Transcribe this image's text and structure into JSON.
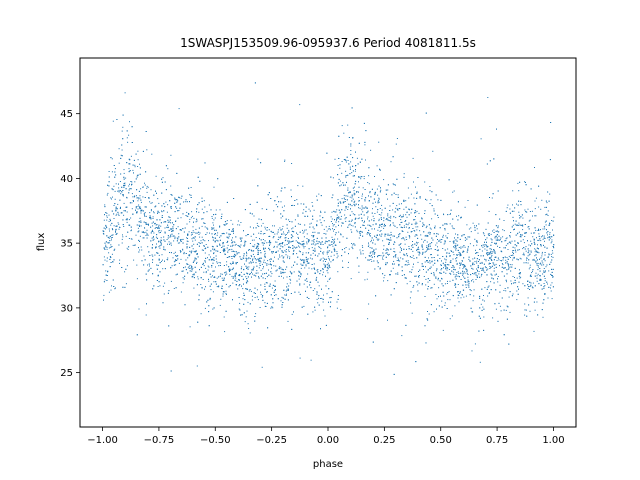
{
  "chart_data": {
    "type": "scatter",
    "title": "1SWASPJ153509.96-095937.6 Period 4081811.5s",
    "xlabel": "phase",
    "ylabel": "flux",
    "xlim": [
      -1.1,
      1.1
    ],
    "ylim": [
      20.8,
      49.3
    ],
    "xticks": [
      -1.0,
      -0.75,
      -0.5,
      -0.25,
      0.0,
      0.25,
      0.5,
      0.75,
      1.0
    ],
    "xtick_labels": [
      "−1.00",
      "−0.75",
      "−0.50",
      "−0.25",
      "0.00",
      "0.25",
      "0.50",
      "0.75",
      "1.00"
    ],
    "yticks": [
      25,
      30,
      35,
      40,
      45
    ],
    "ytick_labels": [
      "25",
      "30",
      "35",
      "40",
      "45"
    ],
    "grid": false,
    "marker_color": "#1f77b4",
    "series": [
      {
        "phase": [
          -1.0,
          -0.95,
          -0.9,
          -0.85,
          -0.8,
          -0.75,
          -0.7,
          -0.65,
          -0.6,
          -0.55,
          -0.5,
          -0.45,
          -0.4,
          -0.35,
          -0.3,
          -0.25,
          -0.2,
          -0.15,
          -0.1,
          -0.05,
          0.0,
          0.05,
          0.1,
          0.15,
          0.2,
          0.25,
          0.3,
          0.35,
          0.4,
          0.45,
          0.5,
          0.55,
          0.6,
          0.65,
          0.7,
          0.75,
          0.8,
          0.85,
          0.9,
          0.95,
          1.0
        ],
        "flux_mean": [
          34.5,
          37.0,
          38.5,
          37.5,
          36.0,
          35.5,
          36.0,
          35.5,
          35.0,
          34.5,
          34.0,
          34.0,
          33.5,
          33.0,
          33.5,
          34.0,
          34.5,
          34.5,
          34.0,
          34.0,
          34.5,
          37.0,
          38.5,
          37.5,
          36.0,
          35.5,
          36.0,
          35.5,
          35.0,
          34.5,
          34.0,
          34.0,
          33.5,
          33.0,
          33.5,
          34.0,
          34.5,
          34.5,
          34.0,
          34.0,
          34.5
        ],
        "flux_spread": [
          2.5,
          3.0,
          3.2,
          3.0,
          2.6,
          2.4,
          2.6,
          2.5,
          2.6,
          2.6,
          2.4,
          2.2,
          2.2,
          2.4,
          2.4,
          2.5,
          2.6,
          2.6,
          2.6,
          2.6,
          2.5,
          3.0,
          3.2,
          3.0,
          2.6,
          2.4,
          2.6,
          2.5,
          2.6,
          2.6,
          2.4,
          2.2,
          2.2,
          2.4,
          2.4,
          2.5,
          2.6,
          2.6,
          2.6,
          2.6,
          2.5
        ]
      }
    ]
  }
}
